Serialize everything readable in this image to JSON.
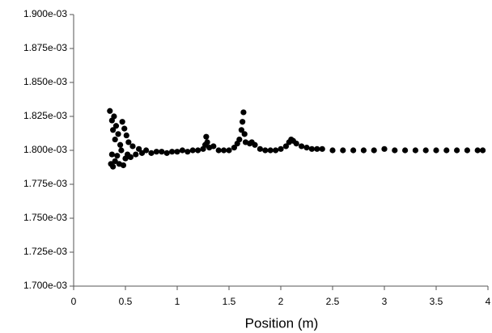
{
  "chart_data": {
    "type": "scatter",
    "x_label": "Position (m)",
    "xlim": [
      0,
      4
    ],
    "xticks": [
      0,
      0.5,
      1,
      1.5,
      2,
      2.5,
      3,
      3.5,
      4
    ],
    "ylim": [
      0.0017,
      0.0019
    ],
    "yticks": [
      {
        "value": 0.0017,
        "label": "1.700e-03"
      },
      {
        "value": 0.001725,
        "label": "1.725e-03"
      },
      {
        "value": 0.00175,
        "label": "1.750e-03"
      },
      {
        "value": 0.001775,
        "label": "1.775e-03"
      },
      {
        "value": 0.0018,
        "label": "1.800e-03"
      },
      {
        "value": 0.001825,
        "label": "1.825e-03"
      },
      {
        "value": 0.00185,
        "label": "1.850e-03"
      },
      {
        "value": 0.001875,
        "label": "1.875e-03"
      },
      {
        "value": 0.0019,
        "label": "1.900e-03"
      }
    ],
    "series": [
      {
        "color": "#000000",
        "x": [
          0.35,
          0.36,
          0.37,
          0.37,
          0.38,
          0.38,
          0.39,
          0.4,
          0.4,
          0.41,
          0.42,
          0.43,
          0.44,
          0.45,
          0.46,
          0.47,
          0.48,
          0.49,
          0.5,
          0.51,
          0.52,
          0.53,
          0.55,
          0.57,
          0.6,
          0.63,
          0.66,
          0.7,
          0.75,
          0.8,
          0.85,
          0.9,
          0.95,
          1.0,
          1.05,
          1.1,
          1.15,
          1.2,
          1.25,
          1.27,
          1.28,
          1.29,
          1.31,
          1.35,
          1.4,
          1.45,
          1.5,
          1.55,
          1.58,
          1.6,
          1.62,
          1.63,
          1.64,
          1.65,
          1.66,
          1.7,
          1.72,
          1.75,
          1.8,
          1.85,
          1.9,
          1.95,
          2.0,
          2.05,
          2.08,
          2.1,
          2.12,
          2.15,
          2.2,
          2.25,
          2.3,
          2.35,
          2.4,
          2.5,
          2.6,
          2.7,
          2.8,
          2.9,
          3.0,
          3.1,
          3.2,
          3.3,
          3.4,
          3.5,
          3.6,
          3.7,
          3.8,
          3.9,
          3.95
        ],
        "values": [
          0.001829,
          0.00179,
          0.001822,
          0.001797,
          0.001815,
          0.001788,
          0.001825,
          0.001808,
          0.001792,
          0.001818,
          0.001796,
          0.001812,
          0.00179,
          0.001804,
          0.0018,
          0.001821,
          0.001789,
          0.001816,
          0.001794,
          0.001811,
          0.001797,
          0.001806,
          0.001795,
          0.001803,
          0.001797,
          0.001801,
          0.001798,
          0.0018,
          0.001798,
          0.001799,
          0.001799,
          0.001798,
          0.001799,
          0.001799,
          0.0018,
          0.001799,
          0.0018,
          0.0018,
          0.001801,
          0.001804,
          0.00181,
          0.001806,
          0.001802,
          0.001803,
          0.0018,
          0.0018,
          0.0018,
          0.001802,
          0.001805,
          0.001808,
          0.001815,
          0.001821,
          0.001828,
          0.001812,
          0.001806,
          0.001805,
          0.001806,
          0.001804,
          0.001801,
          0.0018,
          0.0018,
          0.0018,
          0.001801,
          0.001803,
          0.001806,
          0.001808,
          0.001807,
          0.001805,
          0.001803,
          0.001802,
          0.001801,
          0.001801,
          0.001801,
          0.0018,
          0.0018,
          0.0018,
          0.0018,
          0.0018,
          0.001801,
          0.0018,
          0.0018,
          0.0018,
          0.0018,
          0.0018,
          0.0018,
          0.0018,
          0.0018,
          0.0018,
          0.0018
        ]
      }
    ]
  }
}
